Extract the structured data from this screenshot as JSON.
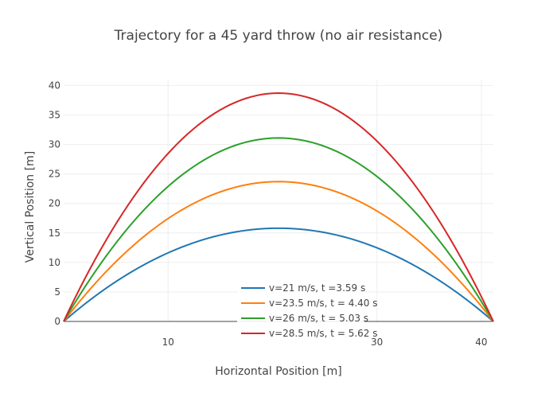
{
  "chart_data": {
    "type": "line",
    "title": "Trajectory for a 45 yard throw (no air resistance)",
    "xlabel": "Horizontal Position [m]",
    "ylabel": "Vertical Position [m]",
    "xlim": [
      0,
      41.15
    ],
    "ylim": [
      0,
      41
    ],
    "x_ticks": [
      10,
      30,
      40
    ],
    "y_ticks": [
      0,
      5,
      10,
      15,
      20,
      25,
      30,
      35,
      40
    ],
    "grid": true,
    "legend_position": "bottom-center",
    "range_m": 41.15,
    "series": [
      {
        "name": "v=21 m/s, t =3.59 s",
        "color": "#1f77b4",
        "peak_y": 15.8
      },
      {
        "name": "v=23.5 m/s, t = 4.40 s",
        "color": "#ff7f0e",
        "peak_y": 23.7
      },
      {
        "name": "v=26 m/s, t = 5.03 s",
        "color": "#2ca02c",
        "peak_y": 31.1
      },
      {
        "name": "v=28.5 m/s, t = 5.62 s",
        "color": "#d62728",
        "peak_y": 38.7
      }
    ]
  }
}
